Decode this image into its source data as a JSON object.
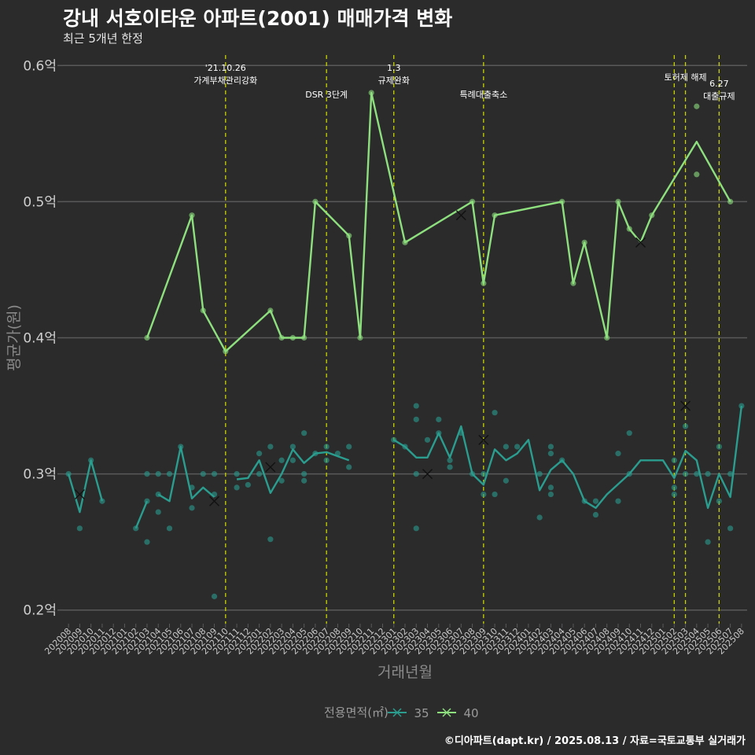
{
  "title": "강내 서호이타운 아파트(2001) 매매가격 변화",
  "subtitle": "최근 5개년 한정",
  "caption": "©디아파트(dapt.kr) / 2025.08.13 / 자료=국토교통부 실거래가",
  "colors": {
    "background": "#2b2b2c",
    "grid": "#595959",
    "vline": "#c8d400",
    "s35": "#2a9d8f",
    "s40": "#8ee07e"
  },
  "chart_data": {
    "type": "line",
    "xlabel": "거래년월",
    "ylabel": "평균가(원)",
    "ylim": [
      0.19,
      0.61
    ],
    "grid": true,
    "legend_placement": "bottom",
    "legend_title": "전용면적(㎡)",
    "y_ticks": [
      {
        "v": 0.2,
        "label": "0.2억"
      },
      {
        "v": 0.3,
        "label": "0.3억"
      },
      {
        "v": 0.4,
        "label": "0.4억"
      },
      {
        "v": 0.5,
        "label": "0.5억"
      },
      {
        "v": 0.6,
        "label": "0.6억"
      }
    ],
    "x_categories": [
      "202008",
      "202009",
      "202010",
      "202011",
      "202012",
      "202101",
      "202102",
      "202103",
      "202104",
      "202105",
      "202106",
      "202107",
      "202108",
      "202109",
      "202110",
      "202111",
      "202112",
      "202201",
      "202202",
      "202203",
      "202204",
      "202205",
      "202206",
      "202207",
      "202208",
      "202209",
      "202210",
      "202211",
      "202212",
      "202301",
      "202302",
      "202303",
      "202304",
      "202305",
      "202306",
      "202307",
      "202308",
      "202309",
      "202310",
      "202311",
      "202312",
      "202401",
      "202402",
      "202403",
      "202404",
      "202405",
      "202406",
      "202407",
      "202408",
      "202409",
      "202410",
      "202411",
      "202412",
      "202501",
      "202502",
      "202503",
      "202504",
      "202505",
      "202506",
      "202507",
      "202508"
    ],
    "annotations": [
      {
        "x": "202110",
        "label": "'21.10.26\n가계부채관리강화",
        "row": 0
      },
      {
        "x": "202207",
        "label": "DSR 3단계",
        "row": 1
      },
      {
        "x": "202301",
        "label": "1.3\n규제완화",
        "row": 0
      },
      {
        "x": "202309",
        "label": "특례대출축소",
        "row": 1
      },
      {
        "x": "202502",
        "label": "",
        "row": 0
      },
      {
        "x": "202503",
        "label": "토허제 해제",
        "row": 0
      },
      {
        "x": "202506",
        "label": "6.27\n대출규제",
        "row": 2
      }
    ],
    "series": [
      {
        "name": "35",
        "line": [
          [
            "202008",
            0.3
          ],
          [
            "202009",
            0.272
          ],
          [
            "202010",
            0.31
          ],
          [
            "202011",
            0.28
          ],
          null,
          [
            "202102",
            0.26
          ],
          [
            "202103",
            0.28
          ],
          null,
          [
            "202301",
            0.325
          ],
          [
            "202302",
            0.32
          ],
          [
            "202303",
            0.312
          ],
          [
            "202304",
            0.312
          ],
          [
            "202305",
            0.33
          ],
          [
            "202306",
            0.312
          ],
          [
            "202307",
            0.335
          ],
          [
            "202308",
            0.3
          ],
          [
            "202309",
            0.292
          ],
          [
            "202310",
            0.318
          ],
          [
            "202311",
            0.31
          ],
          [
            "202312",
            0.315
          ],
          [
            "202401",
            0.325
          ],
          [
            "202402",
            0.288
          ],
          [
            "202403",
            0.303
          ],
          [
            "202404",
            0.31
          ],
          [
            "202405",
            0.3
          ],
          [
            "202406",
            0.28
          ],
          [
            "202407",
            0.275
          ],
          [
            "202408",
            0.285
          ],
          [
            "202410",
            0.3
          ],
          [
            "202411",
            0.31
          ],
          [
            "202412",
            0.31
          ],
          [
            "202501",
            0.31
          ],
          [
            "202502",
            0.297
          ],
          [
            "202503",
            0.317
          ],
          [
            "202504",
            0.31
          ],
          [
            "202505",
            0.275
          ],
          [
            "202506",
            0.3
          ],
          [
            "202507",
            0.283
          ],
          [
            "202508",
            0.35
          ]
        ],
        "line_b": [
          [
            "202104",
            0.285
          ],
          [
            "202105",
            0.28
          ],
          [
            "202106",
            0.32
          ],
          [
            "202107",
            0.282
          ],
          [
            "202108",
            0.29
          ],
          [
            "202109",
            0.283
          ],
          null,
          [
            "202111",
            0.296
          ],
          [
            "202112",
            0.297
          ],
          [
            "202201",
            0.31
          ],
          [
            "202202",
            0.286
          ],
          [
            "202203",
            0.3
          ],
          [
            "202204",
            0.318
          ],
          [
            "202205",
            0.308
          ],
          [
            "202206",
            0.315
          ],
          [
            "202207",
            0.316
          ],
          [
            "202208",
            0.313
          ],
          [
            "202209",
            0.31
          ]
        ],
        "points": [
          [
            "202008",
            0.3
          ],
          [
            "202009",
            0.26
          ],
          [
            "202010",
            0.31
          ],
          [
            "202011",
            0.28
          ],
          [
            "202102",
            0.26
          ],
          [
            "202103",
            0.25
          ],
          [
            "202103",
            0.28
          ],
          [
            "202103",
            0.3
          ],
          [
            "202104",
            0.3
          ],
          [
            "202104",
            0.272
          ],
          [
            "202104",
            0.285
          ],
          [
            "202105",
            0.26
          ],
          [
            "202105",
            0.3
          ],
          [
            "202106",
            0.32
          ],
          [
            "202107",
            0.275
          ],
          [
            "202107",
            0.29
          ],
          [
            "202108",
            0.3
          ],
          [
            "202109",
            0.3
          ],
          [
            "202109",
            0.285
          ],
          [
            "202109",
            0.21
          ],
          [
            "202111",
            0.29
          ],
          [
            "202111",
            0.3
          ],
          [
            "202112",
            0.292
          ],
          [
            "202201",
            0.315
          ],
          [
            "202201",
            0.3
          ],
          [
            "202202",
            0.252
          ],
          [
            "202202",
            0.32
          ],
          [
            "202203",
            0.31
          ],
          [
            "202203",
            0.295
          ],
          [
            "202204",
            0.32
          ],
          [
            "202204",
            0.31
          ],
          [
            "202205",
            0.33
          ],
          [
            "202205",
            0.3
          ],
          [
            "202205",
            0.295
          ],
          [
            "202206",
            0.315
          ],
          [
            "202207",
            0.32
          ],
          [
            "202207",
            0.31
          ],
          [
            "202208",
            0.315
          ],
          [
            "202209",
            0.32
          ],
          [
            "202209",
            0.305
          ],
          [
            "202301",
            0.325
          ],
          [
            "202302",
            0.32
          ],
          [
            "202303",
            0.35
          ],
          [
            "202303",
            0.34
          ],
          [
            "202303",
            0.26
          ],
          [
            "202303",
            0.3
          ],
          [
            "202304",
            0.325
          ],
          [
            "202305",
            0.34
          ],
          [
            "202305",
            0.33
          ],
          [
            "202306",
            0.305
          ],
          [
            "202306",
            0.31
          ],
          [
            "202307",
            0.33
          ],
          [
            "202308",
            0.3
          ],
          [
            "202309",
            0.285
          ],
          [
            "202309",
            0.3
          ],
          [
            "202310",
            0.345
          ],
          [
            "202310",
            0.285
          ],
          [
            "202311",
            0.295
          ],
          [
            "202311",
            0.32
          ],
          [
            "202312",
            0.32
          ],
          [
            "202402",
            0.268
          ],
          [
            "202402",
            0.3
          ],
          [
            "202403",
            0.32
          ],
          [
            "202403",
            0.315
          ],
          [
            "202403",
            0.29
          ],
          [
            "202403",
            0.285
          ],
          [
            "202404",
            0.31
          ],
          [
            "202406",
            0.28
          ],
          [
            "202407",
            0.27
          ],
          [
            "202407",
            0.28
          ],
          [
            "202409",
            0.28
          ],
          [
            "202409",
            0.315
          ],
          [
            "202410",
            0.33
          ],
          [
            "202410",
            0.3
          ],
          [
            "202502",
            0.285
          ],
          [
            "202502",
            0.29
          ],
          [
            "202502",
            0.31
          ],
          [
            "202503",
            0.335
          ],
          [
            "202503",
            0.3
          ],
          [
            "202504",
            0.3
          ],
          [
            "202505",
            0.25
          ],
          [
            "202505",
            0.3
          ],
          [
            "202506",
            0.28
          ],
          [
            "202506",
            0.32
          ],
          [
            "202507",
            0.26
          ],
          [
            "202507",
            0.3
          ],
          [
            "202508",
            0.35
          ]
        ],
        "crosses": [
          [
            "202009",
            0.285
          ],
          [
            "202109",
            0.28
          ],
          [
            "202202",
            0.305
          ],
          [
            "202304",
            0.3
          ],
          [
            "202309",
            0.325
          ],
          [
            "202503",
            0.35
          ]
        ]
      },
      {
        "name": "40",
        "line": [
          [
            "202103",
            0.4
          ],
          [
            "202107",
            0.49
          ],
          [
            "202108",
            0.42
          ],
          [
            "202110",
            0.39
          ],
          [
            "202202",
            0.42
          ],
          [
            "202203",
            0.4
          ],
          [
            "202204",
            0.4
          ],
          [
            "202205",
            0.4
          ],
          [
            "202206",
            0.5
          ],
          [
            "202209",
            0.475
          ],
          [
            "202210",
            0.4
          ],
          [
            "202211",
            0.58
          ],
          [
            "202302",
            0.47
          ],
          [
            "202308",
            0.5
          ],
          [
            "202309",
            0.44
          ],
          [
            "202310",
            0.49
          ],
          [
            "202404",
            0.5
          ],
          [
            "202405",
            0.44
          ],
          [
            "202406",
            0.47
          ],
          [
            "202408",
            0.4
          ],
          [
            "202409",
            0.5
          ],
          [
            "202410",
            0.48
          ],
          [
            "202411",
            0.47
          ],
          [
            "202412",
            0.49
          ],
          [
            "202504",
            0.544
          ],
          [
            "202507",
            0.5
          ]
        ],
        "points": [
          [
            "202103",
            0.4
          ],
          [
            "202107",
            0.49
          ],
          [
            "202108",
            0.42
          ],
          [
            "202110",
            0.39
          ],
          [
            "202202",
            0.42
          ],
          [
            "202203",
            0.4
          ],
          [
            "202204",
            0.4
          ],
          [
            "202205",
            0.4
          ],
          [
            "202206",
            0.5
          ],
          [
            "202209",
            0.475
          ],
          [
            "202210",
            0.4
          ],
          [
            "202211",
            0.58
          ],
          [
            "202302",
            0.47
          ],
          [
            "202308",
            0.5
          ],
          [
            "202309",
            0.44
          ],
          [
            "202310",
            0.49
          ],
          [
            "202404",
            0.5
          ],
          [
            "202405",
            0.44
          ],
          [
            "202406",
            0.47
          ],
          [
            "202408",
            0.4
          ],
          [
            "202409",
            0.5
          ],
          [
            "202410",
            0.48
          ],
          [
            "202412",
            0.49
          ],
          [
            "202504",
            0.57
          ],
          [
            "202504",
            0.52
          ],
          [
            "202507",
            0.5
          ]
        ],
        "crosses": [
          [
            "202307",
            0.49
          ],
          [
            "202411",
            0.47
          ]
        ]
      }
    ]
  }
}
